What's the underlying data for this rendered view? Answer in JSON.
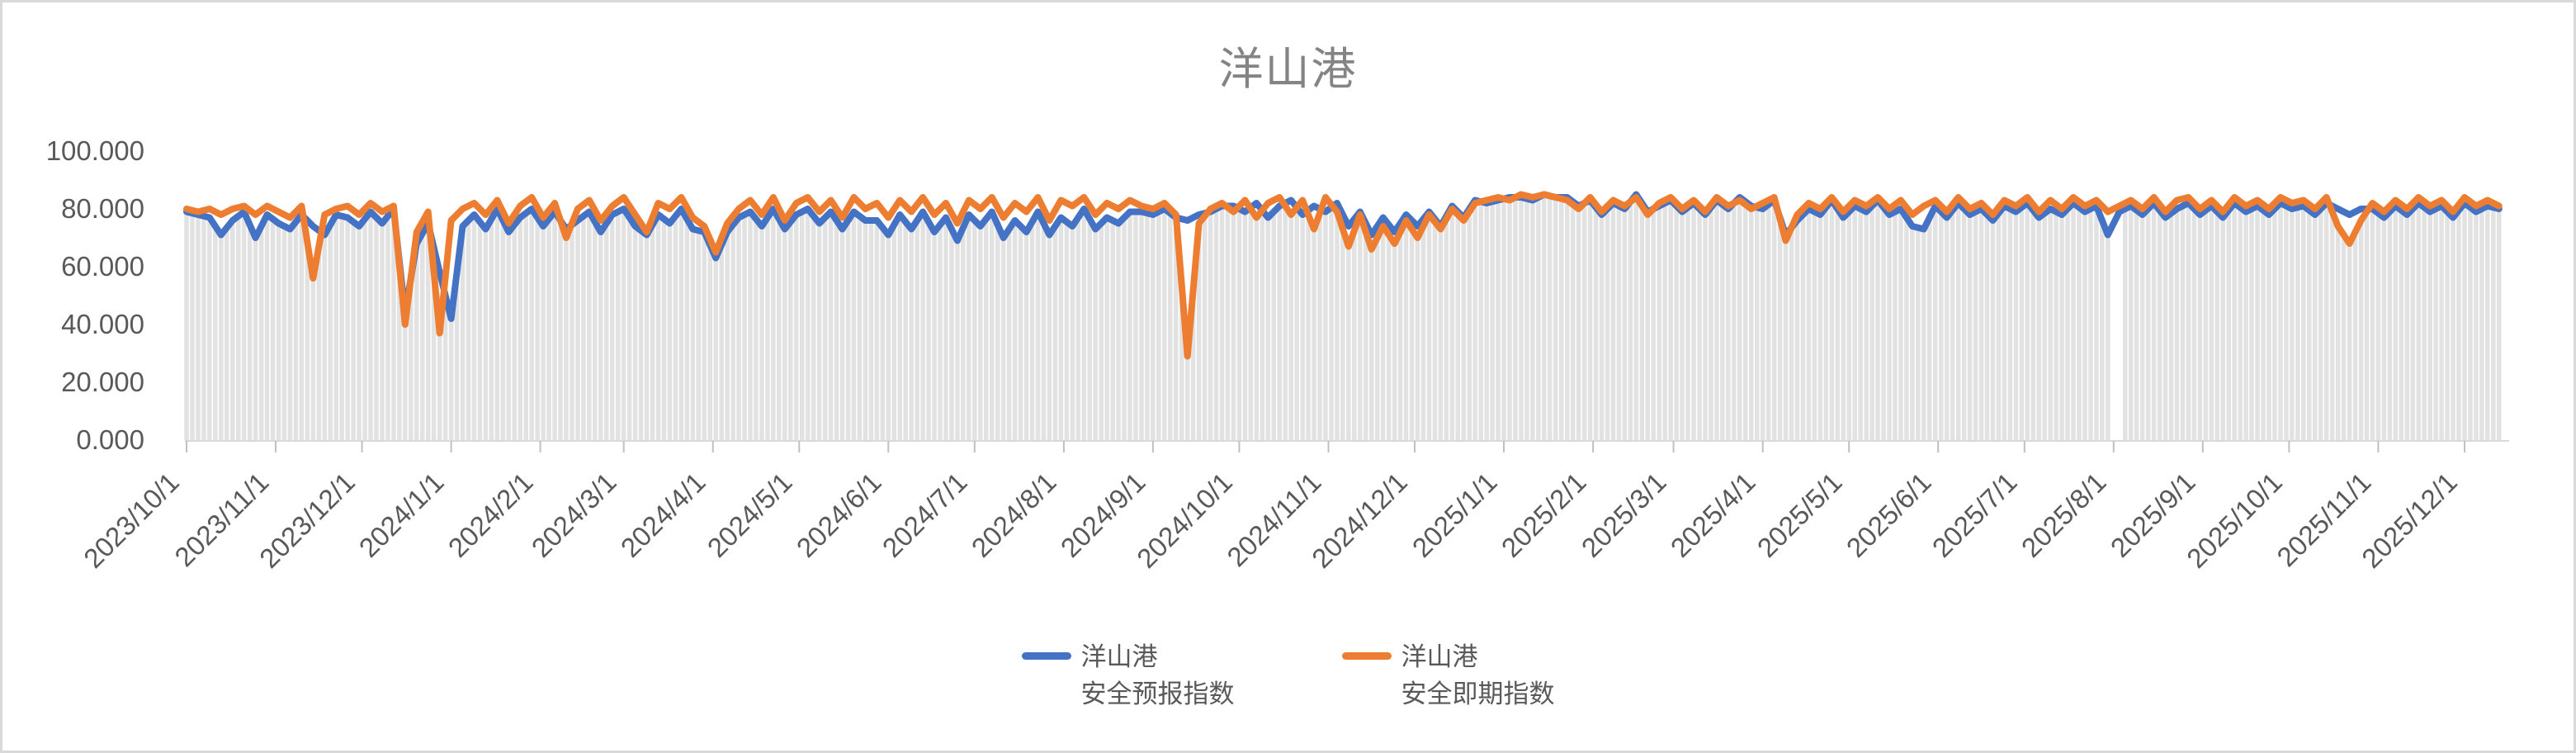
{
  "title": "洋山港",
  "colors": {
    "forecast_blue": "#4472C4",
    "spot_orange": "#ED7D31",
    "background_columns_gray": "#E2E2E2",
    "axis_line": "#D9D9D9",
    "tick_mark": "#C0C0C0",
    "axis_text": "#595959",
    "title_text": "#848484",
    "panel_border": "#D9D9D9"
  },
  "y_axis": {
    "tick_labels": [
      "100.000",
      "80.000",
      "60.000",
      "40.000",
      "20.000",
      "0.000"
    ],
    "tick_values": [
      100,
      80,
      60,
      40,
      20,
      0
    ]
  },
  "x_axis": {
    "tick_labels": [
      "2023/10/1",
      "2023/11/1",
      "2023/12/1",
      "2024/1/1",
      "2024/2/1",
      "2024/3/1",
      "2024/4/1",
      "2024/5/1",
      "2024/6/1",
      "2024/7/1",
      "2024/8/1",
      "2024/9/1",
      "2024/10/1",
      "2024/11/1",
      "2024/12/1",
      "2025/1/1",
      "2025/2/1",
      "2025/3/1",
      "2025/4/1",
      "2025/5/1",
      "2025/6/1",
      "2025/7/1",
      "2025/8/1",
      "2025/9/1",
      "2025/10/1",
      "2025/11/1",
      "2025/12/1"
    ]
  },
  "legend": {
    "items": [
      {
        "line1": "洋山港",
        "line2": "安全预报指数",
        "color": "#4472C4"
      },
      {
        "line1": "洋山港",
        "line2": "安全即期指数",
        "color": "#ED7D31"
      }
    ]
  },
  "chart_data": {
    "type": "line",
    "title": "洋山港",
    "xlabel": "",
    "ylabel": "",
    "ylim": [
      0,
      100
    ],
    "y_tick_interval": 20,
    "grid": false,
    "legend_position": "bottom",
    "x_start_date": "2023/10/1",
    "x_end_date": "2025/12/14",
    "x_step_days": 4,
    "x_tick_labels": [
      "2023/10/1",
      "2023/11/1",
      "2023/12/1",
      "2024/1/1",
      "2024/2/1",
      "2024/3/1",
      "2024/4/1",
      "2024/5/1",
      "2024/6/1",
      "2024/7/1",
      "2024/8/1",
      "2024/9/1",
      "2024/10/1",
      "2024/11/1",
      "2024/12/1",
      "2025/1/1",
      "2025/2/1",
      "2025/3/1",
      "2025/4/1",
      "2025/5/1",
      "2025/6/1",
      "2025/7/1",
      "2025/8/1",
      "2025/9/1",
      "2025/10/1",
      "2025/11/1",
      "2025/12/1"
    ],
    "background_columns": {
      "color": "#E2E2E2",
      "note": "dense daily gray columns rising from 0 to the lower envelope of the two lines"
    },
    "data_gap_day_range": [
      669,
      673
    ],
    "notable_events": [
      {
        "date": "2023/11/14",
        "series": "安全即期指数",
        "value": 56
      },
      {
        "date": "2023/12/16",
        "series": "both",
        "value_spot": 40,
        "value_forecast": 44
      },
      {
        "date": "2023/12/28",
        "series": "both",
        "value_spot": 37,
        "value_forecast": 42
      },
      {
        "date": "2024/4/2",
        "series": "both",
        "value_spot": 65,
        "value_forecast": 63
      },
      {
        "date": "2024/9/14",
        "series": "安全即期指数",
        "value": 29
      },
      {
        "date": "2025/4/9",
        "series": "both",
        "value_spot": 69,
        "value_forecast": 71
      },
      {
        "date": "2025/10/22",
        "series": "安全即期指数",
        "value": 68
      }
    ],
    "series": [
      {
        "name": "洋山港安全预报指数",
        "color": "#4472C4",
        "values": [
          79,
          78,
          77,
          71,
          76,
          79,
          70,
          78,
          75,
          73,
          78,
          74,
          71,
          78,
          77,
          74,
          79,
          75,
          80,
          44,
          68,
          75,
          58,
          42,
          74,
          78,
          73,
          80,
          72,
          77,
          80,
          74,
          79,
          73,
          76,
          79,
          72,
          78,
          80,
          74,
          71,
          78,
          75,
          80,
          73,
          72,
          63,
          72,
          77,
          79,
          74,
          80,
          73,
          78,
          80,
          75,
          79,
          73,
          79,
          76,
          76,
          71,
          78,
          73,
          79,
          72,
          77,
          69,
          78,
          74,
          79,
          70,
          76,
          72,
          79,
          71,
          77,
          74,
          80,
          73,
          77,
          75,
          79,
          79,
          78,
          80,
          77,
          76,
          78,
          79,
          81,
          81,
          79,
          82,
          77,
          81,
          83,
          78,
          81,
          79,
          82,
          74,
          79,
          71,
          77,
          72,
          78,
          74,
          79,
          74,
          81,
          77,
          83,
          82,
          83,
          84,
          84,
          83,
          85,
          84,
          84,
          81,
          83,
          78,
          82,
          80,
          85,
          79,
          81,
          83,
          79,
          82,
          78,
          83,
          80,
          84,
          81,
          80,
          83,
          71,
          76,
          80,
          78,
          83,
          77,
          81,
          79,
          83,
          78,
          80,
          74,
          73,
          81,
          77,
          82,
          78,
          80,
          76,
          81,
          79,
          82,
          77,
          80,
          78,
          82,
          79,
          81,
          71,
          79,
          81,
          78,
          82,
          77,
          80,
          82,
          78,
          81,
          77,
          82,
          79,
          81,
          78,
          82,
          80,
          81,
          78,
          82,
          80,
          78,
          80,
          80,
          77,
          81,
          78,
          82,
          79,
          81,
          77,
          82,
          79,
          81,
          80
        ]
      },
      {
        "name": "洋山港安全即期指数",
        "color": "#ED7D31",
        "values": [
          80,
          79,
          80,
          78,
          80,
          81,
          78,
          81,
          79,
          77,
          81,
          56,
          78,
          80,
          81,
          78,
          82,
          79,
          81,
          40,
          72,
          79,
          37,
          76,
          80,
          82,
          78,
          83,
          75,
          81,
          84,
          77,
          82,
          70,
          80,
          83,
          76,
          81,
          84,
          78,
          72,
          82,
          80,
          84,
          77,
          74,
          65,
          75,
          80,
          83,
          78,
          84,
          76,
          82,
          84,
          79,
          83,
          77,
          84,
          80,
          82,
          77,
          83,
          79,
          84,
          78,
          82,
          75,
          83,
          80,
          84,
          77,
          82,
          79,
          84,
          76,
          83,
          81,
          84,
          78,
          82,
          80,
          83,
          81,
          80,
          82,
          78,
          29,
          75,
          80,
          82,
          79,
          83,
          77,
          82,
          84,
          78,
          83,
          73,
          84,
          79,
          67,
          78,
          66,
          74,
          68,
          76,
          70,
          78,
          73,
          80,
          76,
          82,
          83,
          84,
          83,
          85,
          84,
          85,
          84,
          83,
          80,
          84,
          79,
          83,
          81,
          84,
          78,
          82,
          84,
          80,
          83,
          79,
          84,
          81,
          83,
          80,
          82,
          84,
          69,
          78,
          82,
          80,
          84,
          79,
          83,
          81,
          84,
          80,
          83,
          78,
          81,
          83,
          79,
          84,
          80,
          82,
          78,
          83,
          81,
          84,
          79,
          83,
          80,
          84,
          81,
          83,
          79,
          81,
          83,
          80,
          84,
          79,
          83,
          84,
          80,
          83,
          79,
          84,
          81,
          83,
          80,
          84,
          82,
          83,
          80,
          84,
          74,
          68,
          76,
          82,
          79,
          83,
          80,
          84,
          81,
          83,
          79,
          84,
          81,
          83,
          81
        ]
      }
    ]
  }
}
